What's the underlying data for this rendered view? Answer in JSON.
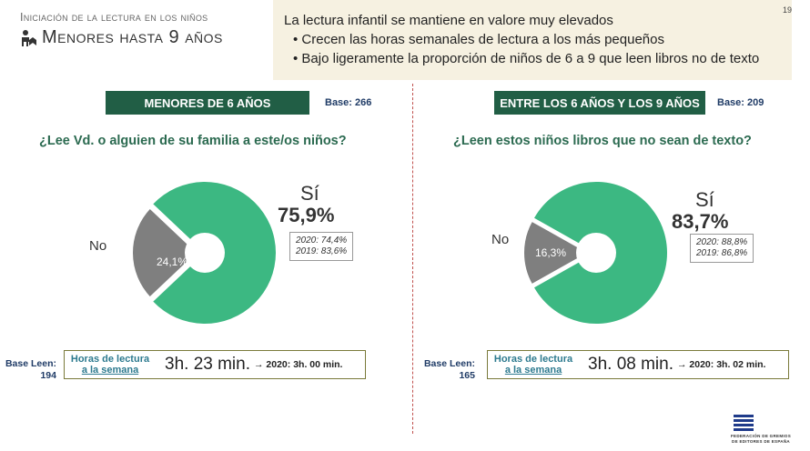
{
  "header": {
    "kicker": "Iniciación de la lectura en los niños",
    "title": "Menores hasta 9 años",
    "page_number": "19"
  },
  "notes": {
    "title": "La lectura infantil se mantiene en valore muy elevados",
    "bullets": [
      "Crecen las horas semanales de lectura a los más pequeños",
      "Bajo ligeramente la proporción de niños de 6 a 9 que leen libros no de texto"
    ]
  },
  "panels": [
    {
      "banner": "MENORES DE 6 AÑOS",
      "base": "Base: 266",
      "question": "¿Lee Vd. o alguien de su familia a este/os niños?",
      "no_label": "No",
      "si_label": "Sí",
      "si_pct": "75,9%",
      "no_pct": "24,1%",
      "prev": [
        "2020: 74,4%",
        "2019: 83,6%"
      ],
      "base_leen": [
        "Base Leen:",
        "194"
      ],
      "hours_label": [
        "Horas de lectura",
        "a la semana"
      ],
      "hours_value": "3h. 23 min.",
      "hours_prev": "→ 2020: 3h. 00 min."
    },
    {
      "banner": "ENTRE LOS 6 AÑOS Y LOS 9 AÑOS",
      "base": "Base: 209",
      "question": "¿Leen estos niños libros que no sean de texto?",
      "no_label": "No",
      "si_label": "Sí",
      "si_pct": "83,7%",
      "no_pct": "16,3%",
      "prev": [
        "2020: 88,8%",
        "2019: 86,8%"
      ],
      "base_leen": [
        "Base Leen:",
        "165"
      ],
      "hours_label": [
        "Horas de lectura",
        "a la semana"
      ],
      "hours_value": "3h. 08 min.",
      "hours_prev": "→ 2020: 3h. 02 min."
    }
  ],
  "chart_data": [
    {
      "type": "pie",
      "categories": [
        "Sí",
        "No"
      ],
      "values": [
        75.9,
        24.1
      ],
      "colors": [
        "#3cb882",
        "#7f7f7f"
      ],
      "title": "¿Lee Vd. o alguien de su familia a este/os niños?"
    },
    {
      "type": "pie",
      "categories": [
        "Sí",
        "No"
      ],
      "values": [
        83.7,
        16.3
      ],
      "colors": [
        "#3cb882",
        "#7f7f7f"
      ],
      "title": "¿Leen estos niños libros que no sean de texto?"
    }
  ],
  "footer": {
    "logo_icon": "federation-logo-icon",
    "org_lines": [
      "FEDERACIÓN DE GREMIOS",
      "DE EDITORES DE ESPAÑA"
    ]
  }
}
